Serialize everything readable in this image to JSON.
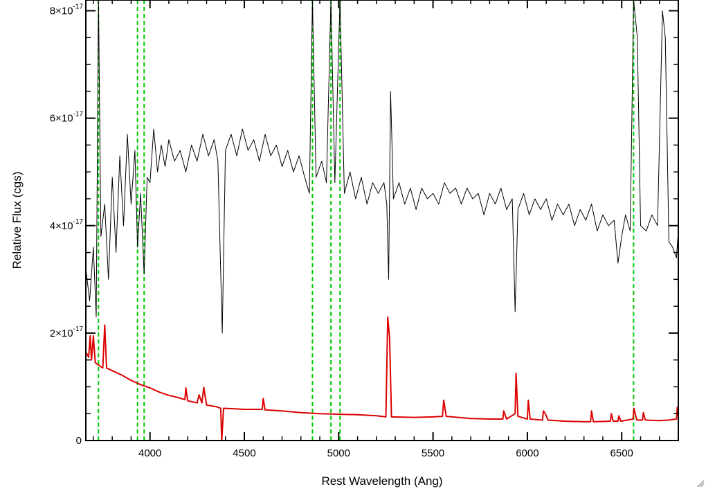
{
  "chart_data": {
    "type": "line",
    "title": "",
    "xlabel": "Rest Wavelength (Ang)",
    "ylabel": "Relative Flux (cgs)",
    "xlim": [
      3660,
      6800
    ],
    "ylim": [
      0,
      8.2e-17
    ],
    "x_ticks": [
      {
        "value": 4000,
        "label": "4000"
      },
      {
        "value": 4500,
        "label": "4500"
      },
      {
        "value": 5000,
        "label": "5000"
      },
      {
        "value": 5500,
        "label": "5500"
      },
      {
        "value": 6000,
        "label": "6000"
      },
      {
        "value": 6500,
        "label": "6500"
      }
    ],
    "y_ticks": [
      {
        "value": 0,
        "mantissa": "0",
        "exponent": ""
      },
      {
        "value": 2e-17,
        "mantissa": "2×10",
        "exponent": "-17"
      },
      {
        "value": 4e-17,
        "mantissa": "4×10",
        "exponent": "-17"
      },
      {
        "value": 6e-17,
        "mantissa": "6×10",
        "exponent": "-17"
      },
      {
        "value": 8e-17,
        "mantissa": "8×10",
        "exponent": "-17"
      }
    ],
    "grid": false,
    "reference_lines": {
      "color": "#00cc00",
      "style": "dashed",
      "x": [
        3727,
        3934,
        3969,
        4861,
        4959,
        5007,
        6563
      ]
    },
    "series": [
      {
        "color": "#000000",
        "values_unit": "1e-17",
        "points": [
          [
            3660,
            3.2
          ],
          [
            3680,
            2.6
          ],
          [
            3700,
            3.6
          ],
          [
            3715,
            2.3
          ],
          [
            3727,
            9.5
          ],
          [
            3740,
            3.8
          ],
          [
            3760,
            4.4
          ],
          [
            3780,
            3.0
          ],
          [
            3800,
            4.9
          ],
          [
            3820,
            3.5
          ],
          [
            3840,
            5.3
          ],
          [
            3860,
            4.0
          ],
          [
            3880,
            5.7
          ],
          [
            3900,
            4.4
          ],
          [
            3920,
            5.4
          ],
          [
            3934,
            3.6
          ],
          [
            3950,
            4.6
          ],
          [
            3969,
            3.1
          ],
          [
            3985,
            4.9
          ],
          [
            4000,
            4.8
          ],
          [
            4020,
            5.8
          ],
          [
            4040,
            5.0
          ],
          [
            4060,
            5.5
          ],
          [
            4080,
            5.1
          ],
          [
            4100,
            5.6
          ],
          [
            4130,
            5.2
          ],
          [
            4160,
            5.4
          ],
          [
            4190,
            5.0
          ],
          [
            4220,
            5.5
          ],
          [
            4250,
            5.2
          ],
          [
            4280,
            5.7
          ],
          [
            4310,
            5.3
          ],
          [
            4340,
            5.6
          ],
          [
            4360,
            5.2
          ],
          [
            4383,
            2.0
          ],
          [
            4400,
            5.4
          ],
          [
            4430,
            5.7
          ],
          [
            4460,
            5.3
          ],
          [
            4490,
            5.8
          ],
          [
            4520,
            5.4
          ],
          [
            4550,
            5.6
          ],
          [
            4580,
            5.2
          ],
          [
            4610,
            5.7
          ],
          [
            4640,
            5.3
          ],
          [
            4670,
            5.5
          ],
          [
            4700,
            5.1
          ],
          [
            4730,
            5.4
          ],
          [
            4760,
            5.0
          ],
          [
            4790,
            5.3
          ],
          [
            4820,
            4.9
          ],
          [
            4845,
            4.6
          ],
          [
            4861,
            9.0
          ],
          [
            4880,
            4.9
          ],
          [
            4910,
            5.2
          ],
          [
            4935,
            4.8
          ],
          [
            4959,
            9.0
          ],
          [
            4980,
            4.8
          ],
          [
            5007,
            9.5
          ],
          [
            5030,
            4.6
          ],
          [
            5060,
            5.0
          ],
          [
            5090,
            4.5
          ],
          [
            5120,
            4.9
          ],
          [
            5150,
            4.4
          ],
          [
            5180,
            4.8
          ],
          [
            5210,
            4.6
          ],
          [
            5240,
            4.8
          ],
          [
            5255,
            4.4
          ],
          [
            5265,
            3.0
          ],
          [
            5275,
            6.5
          ],
          [
            5290,
            4.5
          ],
          [
            5320,
            4.8
          ],
          [
            5350,
            4.4
          ],
          [
            5380,
            4.7
          ],
          [
            5410,
            4.3
          ],
          [
            5440,
            4.7
          ],
          [
            5470,
            4.5
          ],
          [
            5500,
            4.6
          ],
          [
            5530,
            4.4
          ],
          [
            5560,
            4.8
          ],
          [
            5590,
            4.6
          ],
          [
            5620,
            4.7
          ],
          [
            5650,
            4.4
          ],
          [
            5680,
            4.7
          ],
          [
            5710,
            4.5
          ],
          [
            5740,
            4.6
          ],
          [
            5770,
            4.2
          ],
          [
            5800,
            4.6
          ],
          [
            5830,
            4.4
          ],
          [
            5860,
            4.7
          ],
          [
            5890,
            4.3
          ],
          [
            5920,
            4.5
          ],
          [
            5935,
            2.4
          ],
          [
            5950,
            4.3
          ],
          [
            5980,
            4.6
          ],
          [
            6010,
            4.2
          ],
          [
            6040,
            4.5
          ],
          [
            6070,
            4.3
          ],
          [
            6100,
            4.5
          ],
          [
            6130,
            4.1
          ],
          [
            6160,
            4.4
          ],
          [
            6190,
            4.2
          ],
          [
            6220,
            4.4
          ],
          [
            6250,
            4.0
          ],
          [
            6280,
            4.3
          ],
          [
            6310,
            4.1
          ],
          [
            6340,
            4.4
          ],
          [
            6370,
            3.9
          ],
          [
            6400,
            4.2
          ],
          [
            6430,
            4.0
          ],
          [
            6460,
            4.1
          ],
          [
            6480,
            3.3
          ],
          [
            6500,
            3.8
          ],
          [
            6520,
            4.2
          ],
          [
            6545,
            3.9
          ],
          [
            6563,
            9.5
          ],
          [
            6583,
            7.5
          ],
          [
            6600,
            4.0
          ],
          [
            6630,
            3.9
          ],
          [
            6660,
            4.2
          ],
          [
            6690,
            4.0
          ],
          [
            6716,
            8.0
          ],
          [
            6731,
            7.5
          ],
          [
            6750,
            3.7
          ],
          [
            6770,
            3.6
          ],
          [
            6790,
            3.4
          ],
          [
            6800,
            3.9
          ]
        ]
      },
      {
        "color": "#dd0000",
        "values_unit": "1e-17",
        "points": [
          [
            3660,
            1.65
          ],
          [
            3675,
            1.55
          ],
          [
            3683,
            1.95
          ],
          [
            3690,
            1.5
          ],
          [
            3700,
            1.95
          ],
          [
            3710,
            1.45
          ],
          [
            3730,
            1.4
          ],
          [
            3750,
            1.35
          ],
          [
            3760,
            2.15
          ],
          [
            3770,
            1.35
          ],
          [
            3800,
            1.3
          ],
          [
            3850,
            1.22
          ],
          [
            3900,
            1.12
          ],
          [
            3950,
            1.04
          ],
          [
            4000,
            0.98
          ],
          [
            4050,
            0.9
          ],
          [
            4100,
            0.84
          ],
          [
            4150,
            0.8
          ],
          [
            4185,
            0.76
          ],
          [
            4190,
            0.98
          ],
          [
            4200,
            0.74
          ],
          [
            4250,
            0.7
          ],
          [
            4260,
            0.85
          ],
          [
            4275,
            0.7
          ],
          [
            4285,
            0.99
          ],
          [
            4300,
            0.66
          ],
          [
            4350,
            0.63
          ],
          [
            4375,
            0.6
          ],
          [
            4380,
            0.0
          ],
          [
            4390,
            0.6
          ],
          [
            4450,
            0.59
          ],
          [
            4500,
            0.58
          ],
          [
            4550,
            0.58
          ],
          [
            4595,
            0.58
          ],
          [
            4600,
            0.78
          ],
          [
            4610,
            0.57
          ],
          [
            4700,
            0.55
          ],
          [
            4800,
            0.52
          ],
          [
            4900,
            0.5
          ],
          [
            5000,
            0.49
          ],
          [
            5100,
            0.48
          ],
          [
            5200,
            0.46
          ],
          [
            5250,
            0.44
          ],
          [
            5260,
            2.3
          ],
          [
            5270,
            1.9
          ],
          [
            5280,
            0.44
          ],
          [
            5400,
            0.43
          ],
          [
            5500,
            0.44
          ],
          [
            5550,
            0.45
          ],
          [
            5557,
            0.75
          ],
          [
            5570,
            0.45
          ],
          [
            5700,
            0.41
          ],
          [
            5800,
            0.4
          ],
          [
            5870,
            0.4
          ],
          [
            5875,
            0.55
          ],
          [
            5890,
            0.4
          ],
          [
            5935,
            0.5
          ],
          [
            5940,
            1.25
          ],
          [
            5950,
            0.45
          ],
          [
            6000,
            0.4
          ],
          [
            6005,
            0.75
          ],
          [
            6015,
            0.4
          ],
          [
            6080,
            0.38
          ],
          [
            6085,
            0.55
          ],
          [
            6095,
            0.5
          ],
          [
            6110,
            0.38
          ],
          [
            6200,
            0.36
          ],
          [
            6300,
            0.35
          ],
          [
            6335,
            0.35
          ],
          [
            6340,
            0.55
          ],
          [
            6350,
            0.35
          ],
          [
            6440,
            0.36
          ],
          [
            6445,
            0.5
          ],
          [
            6455,
            0.36
          ],
          [
            6480,
            0.36
          ],
          [
            6485,
            0.46
          ],
          [
            6495,
            0.36
          ],
          [
            6560,
            0.4
          ],
          [
            6565,
            0.6
          ],
          [
            6580,
            0.38
          ],
          [
            6610,
            0.38
          ],
          [
            6615,
            0.52
          ],
          [
            6625,
            0.38
          ],
          [
            6700,
            0.37
          ],
          [
            6750,
            0.38
          ],
          [
            6790,
            0.4
          ],
          [
            6795,
            0.62
          ],
          [
            6800,
            0.45
          ]
        ]
      }
    ]
  }
}
